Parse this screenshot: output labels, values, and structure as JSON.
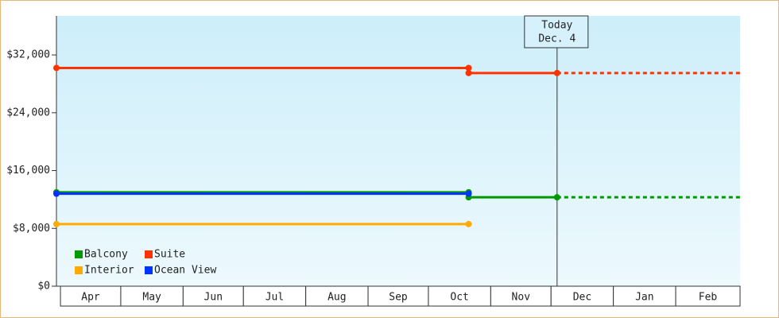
{
  "chart_data": {
    "type": "line",
    "xlim": [
      -2,
      338
    ],
    "xticks": [
      {
        "value": 0,
        "label": "Apr"
      },
      {
        "value": 30,
        "label": "May"
      },
      {
        "value": 61,
        "label": "Jun"
      },
      {
        "value": 91,
        "label": "Jul"
      },
      {
        "value": 122,
        "label": "Aug"
      },
      {
        "value": 153,
        "label": "Sep"
      },
      {
        "value": 183,
        "label": "Oct"
      },
      {
        "value": 214,
        "label": "Nov"
      },
      {
        "value": 244,
        "label": "Dec"
      },
      {
        "value": 275,
        "label": "Jan"
      },
      {
        "value": 306,
        "label": "Feb"
      }
    ],
    "ylim": [
      0,
      37400
    ],
    "yticks": [
      {
        "value": 0,
        "label": "$0"
      },
      {
        "value": 8000,
        "label": "$8,000"
      },
      {
        "value": 16000,
        "label": "$16,000"
      },
      {
        "value": 24000,
        "label": "$24,000"
      },
      {
        "value": 32000,
        "label": "$32,000"
      }
    ],
    "today": {
      "x": 247,
      "label": "Today",
      "date": "Dec. 4"
    },
    "projection": true,
    "series": [
      {
        "name": "Balcony",
        "color": "#009900",
        "x": [
          -2,
          203,
          203,
          247
        ],
        "values": [
          13000,
          13000,
          12300,
          12300
        ]
      },
      {
        "name": "Suite",
        "color": "#ff3300",
        "x": [
          -2,
          203,
          203,
          247
        ],
        "values": [
          30200,
          30200,
          29500,
          29500
        ]
      },
      {
        "name": "Interior",
        "color": "#ffaa00",
        "x": [
          -2,
          203
        ],
        "values": [
          8600,
          8600
        ]
      },
      {
        "name": "Ocean View",
        "color": "#0033ff",
        "x": [
          -2,
          203
        ],
        "values": [
          12800,
          12800
        ]
      }
    ]
  }
}
